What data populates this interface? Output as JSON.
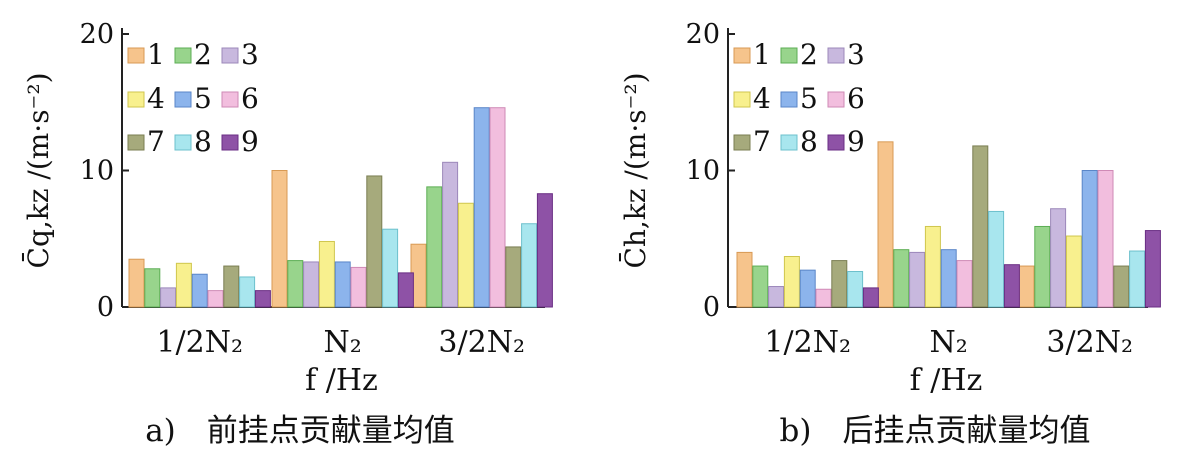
{
  "chart_data": [
    {
      "type": "bar",
      "panel_caption": "a)　前挂点贡献量均值",
      "ylabel": "C̄q,kz /(m·s⁻²)",
      "xlabel": "f /Hz",
      "categories": [
        "1/2N₂",
        "N₂",
        "3/2N₂"
      ],
      "ylim": [
        0,
        20
      ],
      "yticks": [
        "0",
        "10",
        "20"
      ],
      "series": [
        {
          "name": "1",
          "values": [
            3.5,
            10.0,
            4.6
          ]
        },
        {
          "name": "2",
          "values": [
            2.8,
            3.4,
            8.8
          ]
        },
        {
          "name": "3",
          "values": [
            1.4,
            3.3,
            10.6
          ]
        },
        {
          "name": "4",
          "values": [
            3.2,
            4.8,
            7.6
          ]
        },
        {
          "name": "5",
          "values": [
            2.4,
            3.3,
            14.6
          ]
        },
        {
          "name": "6",
          "values": [
            1.2,
            2.9,
            14.6
          ]
        },
        {
          "name": "7",
          "values": [
            3.0,
            9.6,
            4.4
          ]
        },
        {
          "name": "8",
          "values": [
            2.2,
            5.7,
            6.1
          ]
        },
        {
          "name": "9",
          "values": [
            1.2,
            2.5,
            8.3
          ]
        }
      ]
    },
    {
      "type": "bar",
      "panel_caption": "b)　后挂点贡献量均值",
      "ylabel": "C̄h,kz /(m·s⁻²)",
      "xlabel": "f /Hz",
      "categories": [
        "1/2N₂",
        "N₂",
        "3/2N₂"
      ],
      "ylim": [
        0,
        20
      ],
      "yticks": [
        "0",
        "10",
        "20"
      ],
      "series": [
        {
          "name": "1",
          "values": [
            4.0,
            12.1,
            3.0
          ]
        },
        {
          "name": "2",
          "values": [
            3.0,
            4.2,
            5.9
          ]
        },
        {
          "name": "3",
          "values": [
            1.5,
            4.0,
            7.2
          ]
        },
        {
          "name": "4",
          "values": [
            3.7,
            5.9,
            5.2
          ]
        },
        {
          "name": "5",
          "values": [
            2.7,
            4.2,
            10.0
          ]
        },
        {
          "name": "6",
          "values": [
            1.3,
            3.4,
            10.0
          ]
        },
        {
          "name": "7",
          "values": [
            3.4,
            11.8,
            3.0
          ]
        },
        {
          "name": "8",
          "values": [
            2.6,
            7.0,
            4.1
          ]
        },
        {
          "name": "9",
          "values": [
            1.4,
            3.1,
            5.6
          ]
        }
      ]
    }
  ],
  "colors": {
    "series": [
      "#f6c48c",
      "#98d48c",
      "#c8b8de",
      "#f8f08e",
      "#8cb4ec",
      "#f2bede",
      "#a6aa7c",
      "#a8e6ee",
      "#8e52a6"
    ],
    "border": [
      "#d89a54",
      "#5cae54",
      "#9c88ba",
      "#cfc64e",
      "#5a86c8",
      "#cf8ab6",
      "#7a7e52",
      "#6cc0cc",
      "#6a2e84"
    ]
  }
}
